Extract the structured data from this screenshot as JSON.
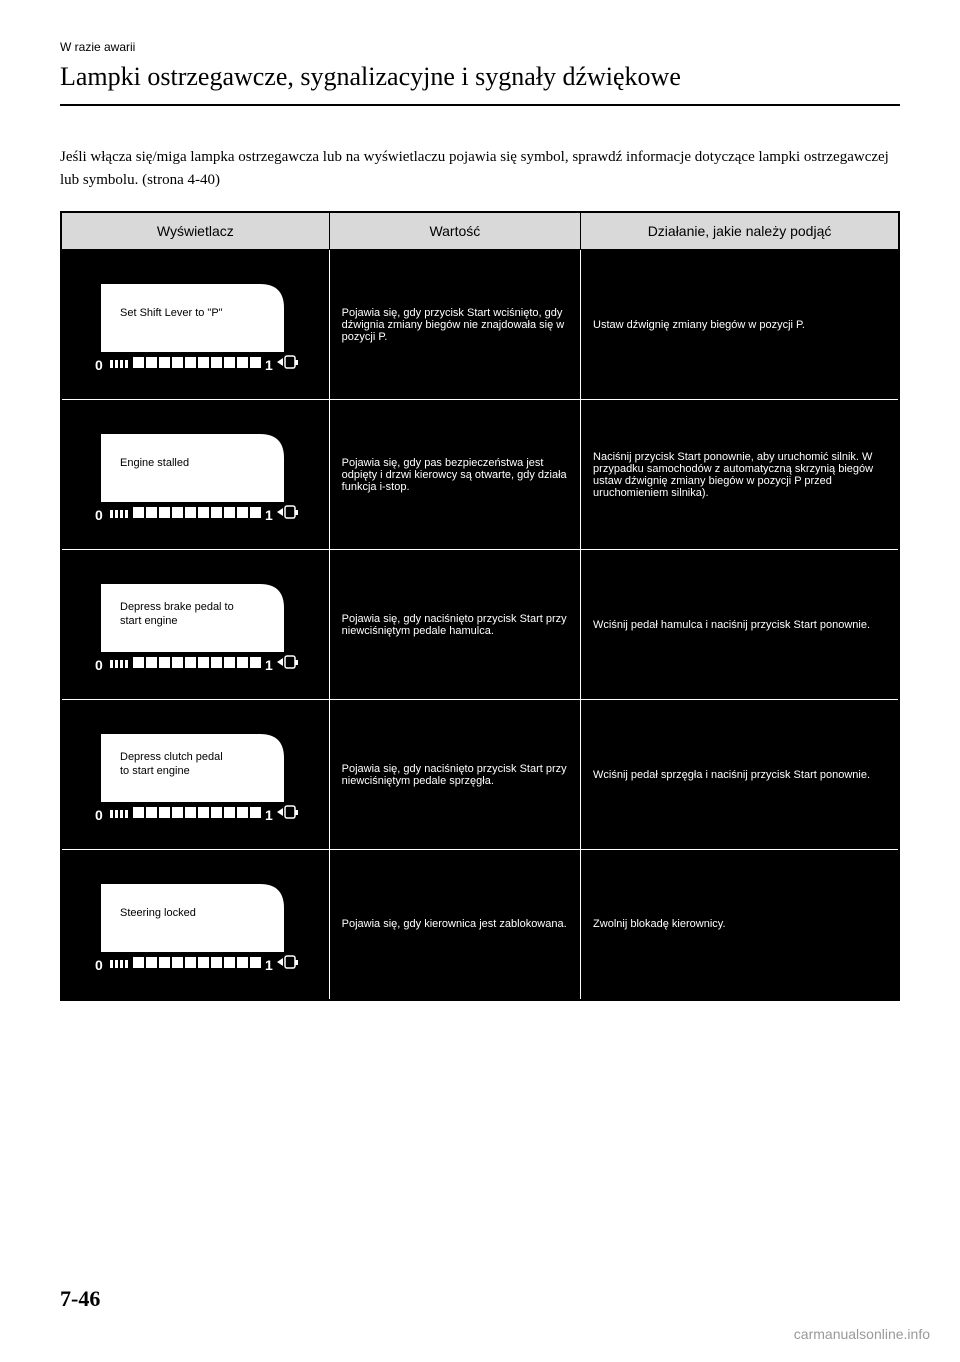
{
  "header": {
    "breadcrumb": "W razie awarii",
    "title": "Lampki ostrzegawcze, sygnalizacyjne i sygnały dźwiękowe"
  },
  "intro": "Jeśli włącza się/miga lampka ostrzegawcza lub na wyświetlaczu pojawia się symbol, sprawdź informacje dotyczące lampki ostrzegawczej lub symbolu. (strona 4-40)",
  "table": {
    "headers": {
      "col1": "Wyświetlacz",
      "col2": "Wartość",
      "col3": "Działanie, jakie należy podjąć"
    },
    "rows": [
      {
        "display_text": "Set Shift Lever to \"P\"",
        "value": "Pojawia się, gdy przycisk Start wciśnięto, gdy dźwignia zmiany biegów nie znajdowała się w pozycji P.",
        "action": "Ustaw dźwignię zmiany biegów w pozycji P."
      },
      {
        "display_text": "Engine stalled",
        "value": "Pojawia się, gdy pas bezpieczeństwa jest odpięty i drzwi kierowcy są otwarte, gdy działa funkcja i-stop.",
        "action": "Naciśnij przycisk Start ponownie, aby uruchomić silnik. W przypadku samochodów z automatyczną skrzynią biegów ustaw dźwignię zmiany biegów w pozycji P przed uruchomieniem silnika)."
      },
      {
        "display_text": "Depress brake pedal to start engine",
        "value": "Pojawia się, gdy naciśnięto przycisk Start przy niewciśniętym pedale hamulca.",
        "action": "Wciśnij pedał hamulca i naciśnij przycisk Start ponownie."
      },
      {
        "display_text": "Depress clutch pedal to start engine",
        "value": "Pojawia się, gdy naciśnięto przycisk Start przy niewciśniętym pedale sprzęgła.",
        "action": "Wciśnij pedał sprzęgła i naciśnij przycisk Start ponownie."
      },
      {
        "display_text": "Steering locked",
        "value": "Pojawia się, gdy kierownica jest zablokowana.",
        "action": "Zwolnij blokadę kierownicy."
      }
    ]
  },
  "page_number": "7-46",
  "footer": "carmanualsonline.info",
  "styling": {
    "page_bg": "#ffffff",
    "table_header_bg": "#d9d9d9",
    "table_cell_bg": "#000000",
    "table_cell_text": "#ffffff",
    "display_panel_bg": "#ffffff",
    "display_panel_text": "#000000",
    "tick_fill": "#000000"
  }
}
